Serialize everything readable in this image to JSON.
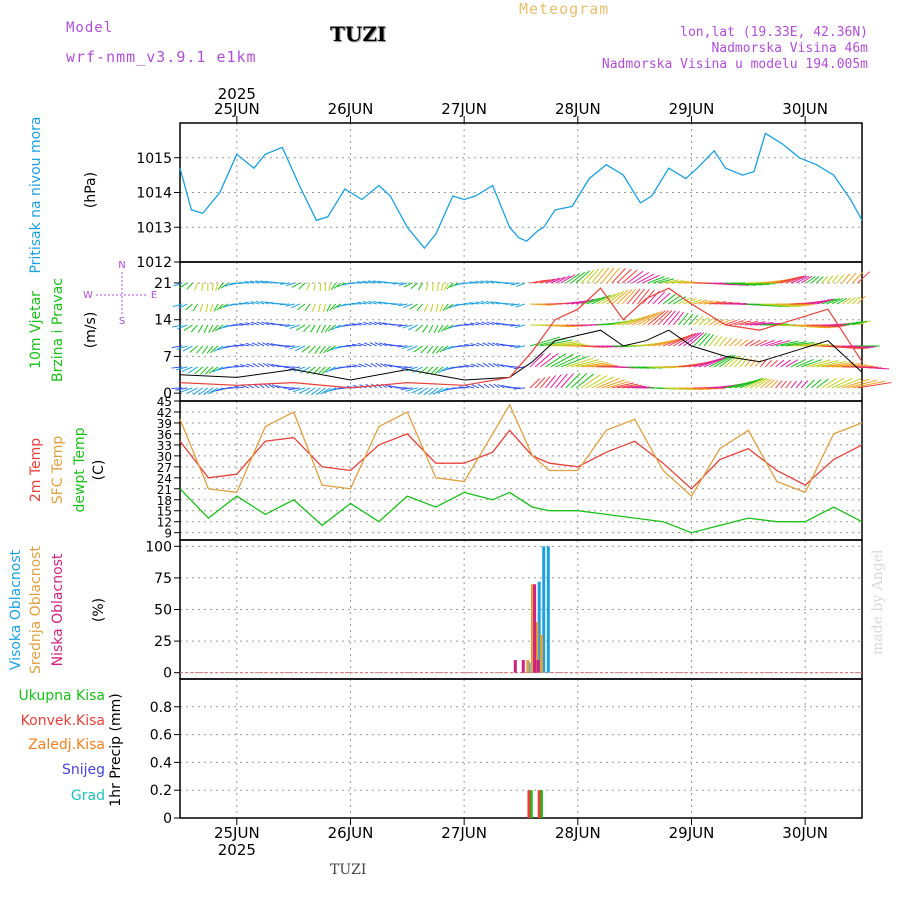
{
  "header": {
    "model_label": "Model",
    "model_name": "wrf-nmm_v3.9.1 e1km",
    "station_title": "TUZI",
    "meteogram_label": "Meteogram",
    "coords": "lon,lat (19.33E, 42.36N)",
    "elevation": "Nadmorska Visina 46m",
    "model_elevation": "Nadmorska Visina u modelu 194.005m"
  },
  "footer": {
    "station": "TUZI",
    "watermark": "made by Angel"
  },
  "time_axis": {
    "year": "2025",
    "days": [
      "25JUN",
      "26JUN",
      "27JUN",
      "28JUN",
      "29JUN",
      "30JUN"
    ],
    "range_days": [
      24.5,
      30.5
    ]
  },
  "panel_labels": {
    "pressure": [
      "Pritisak na nivou mora",
      "(hPa)"
    ],
    "wind": [
      "10m Vjetar",
      "Brzina i Pravac",
      "(m/s)"
    ],
    "wind_compass": [
      "N",
      "E",
      "S",
      "W"
    ],
    "temp": [
      "2m Temp",
      "SFC Temp",
      "dewpt Temp",
      "(C)"
    ],
    "cloud": [
      "Visoka Oblacnost",
      "Srednja Oblacnost",
      "Niska Oblacnost",
      "(%)"
    ],
    "precip": [
      "Ukupna Kisa",
      "Konvek.Kisa",
      "Zaledj.Kisa",
      "Snijeg",
      "Grad",
      "1hr Precip (mm)"
    ]
  },
  "colors": {
    "model_text": "#b04fd6",
    "meteogram_text": "#e8c070",
    "coords_text": "#b04fd6",
    "pressure_line": "#1aa0e0",
    "pressure_label": "#1aa0e0",
    "wind_label": "#18c018",
    "wind_speed_line": "#000000",
    "wind_gust_line": "#e8403a",
    "t2m": "#e8403a",
    "tsfc": "#e0a040",
    "tdew": "#18c018",
    "cloud_high": "#1aa0e0",
    "cloud_mid": "#e0a040",
    "cloud_low": "#d02080",
    "precip_total": "#18c018",
    "precip_conv": "#e8403a",
    "precip_frz": "#f08020",
    "precip_snow": "#4444dd",
    "precip_hail": "#20c0c0",
    "watermark": "#d8d8d8"
  },
  "chart_data": [
    {
      "type": "line",
      "panel": "pressure",
      "ylabel": "(hPa)",
      "ylim": [
        1012,
        1016
      ],
      "yticks": [
        1012,
        1013,
        1014,
        1015
      ],
      "series": [
        {
          "name": "Pritisak na nivou mora",
          "x": [
            24.5,
            24.6,
            24.7,
            24.85,
            25.0,
            25.15,
            25.25,
            25.4,
            25.55,
            25.7,
            25.8,
            25.95,
            26.1,
            26.25,
            26.35,
            26.5,
            26.65,
            26.75,
            26.9,
            27.0,
            27.1,
            27.25,
            27.4,
            27.48,
            27.55,
            27.65,
            27.7,
            27.8,
            27.95,
            28.1,
            28.25,
            28.4,
            28.55,
            28.65,
            28.8,
            28.95,
            29.05,
            29.2,
            29.3,
            29.45,
            29.55,
            29.65,
            29.8,
            29.95,
            30.1,
            30.25,
            30.4,
            30.5
          ],
          "y": [
            1014.7,
            1013.5,
            1013.4,
            1014.0,
            1015.1,
            1014.7,
            1015.1,
            1015.3,
            1014.2,
            1013.2,
            1013.3,
            1014.1,
            1013.8,
            1014.2,
            1013.9,
            1013.0,
            1012.4,
            1012.8,
            1013.9,
            1013.8,
            1013.9,
            1014.2,
            1013.0,
            1012.7,
            1012.6,
            1012.9,
            1013.0,
            1013.5,
            1013.6,
            1014.4,
            1014.8,
            1014.5,
            1013.7,
            1013.9,
            1014.7,
            1014.4,
            1014.7,
            1015.2,
            1014.7,
            1014.5,
            1014.6,
            1015.7,
            1015.4,
            1015.0,
            1014.8,
            1014.5,
            1013.8,
            1013.2
          ]
        }
      ]
    },
    {
      "type": "line",
      "panel": "wind",
      "ylabel": "(m/s)",
      "ylim": [
        -1.5,
        25
      ],
      "yticks": [
        0,
        7,
        14,
        21
      ],
      "series": [
        {
          "name": "speed",
          "x": [
            24.5,
            25.0,
            25.5,
            26.0,
            26.5,
            27.0,
            27.4,
            27.6,
            27.8,
            28.0,
            28.2,
            28.4,
            28.6,
            28.8,
            29.0,
            29.3,
            29.6,
            29.9,
            30.2,
            30.5
          ],
          "y": [
            3.5,
            3.0,
            4.5,
            2.5,
            4.5,
            2.5,
            3.0,
            6.0,
            10.0,
            11.0,
            12.0,
            9.0,
            10.0,
            12.0,
            9.0,
            7.0,
            6.0,
            8.0,
            10.0,
            4.0
          ]
        },
        {
          "name": "gust",
          "x": [
            24.5,
            25.0,
            25.5,
            26.0,
            26.5,
            27.0,
            27.4,
            27.6,
            27.8,
            28.0,
            28.2,
            28.4,
            28.6,
            28.8,
            29.0,
            29.3,
            29.6,
            29.9,
            30.2,
            30.5
          ],
          "y": [
            2.0,
            1.5,
            2.0,
            1.0,
            2.0,
            1.5,
            3.0,
            8.0,
            14.0,
            16.0,
            20.0,
            14.0,
            18.0,
            20.0,
            17.0,
            13.0,
            12.0,
            14.0,
            16.0,
            6.0
          ]
        }
      ]
    },
    {
      "type": "line",
      "panel": "temp",
      "ylabel": "(C)",
      "ylim": [
        7,
        45
      ],
      "yticks": [
        9,
        12,
        15,
        18,
        21,
        24,
        27,
        30,
        33,
        36,
        39,
        42,
        45
      ],
      "x": [
        24.5,
        24.75,
        25.0,
        25.25,
        25.5,
        25.75,
        26.0,
        26.25,
        26.5,
        26.75,
        27.0,
        27.25,
        27.4,
        27.6,
        27.75,
        28.0,
        28.25,
        28.5,
        28.75,
        29.0,
        29.25,
        29.5,
        29.75,
        30.0,
        30.25,
        30.5
      ],
      "series": [
        {
          "name": "2m Temp",
          "y": [
            34,
            24,
            25,
            34,
            35,
            27,
            26,
            33,
            36,
            28,
            28,
            31,
            37,
            30,
            28,
            27,
            31,
            34,
            28,
            21,
            29,
            32,
            26,
            22,
            29,
            33
          ]
        },
        {
          "name": "SFC Temp",
          "y": [
            40,
            21,
            20,
            38,
            42,
            22,
            21,
            38,
            42,
            24,
            23,
            36,
            44,
            30,
            26,
            26,
            37,
            40,
            26,
            19,
            32,
            37,
            23,
            20,
            36,
            39
          ]
        },
        {
          "name": "dewpt Temp",
          "y": [
            21,
            13,
            19,
            14,
            18,
            11,
            17,
            12,
            19,
            16,
            20,
            18,
            20,
            16,
            15,
            15,
            14,
            13,
            12,
            9,
            11,
            13,
            12,
            12,
            16,
            12
          ]
        }
      ]
    },
    {
      "type": "bar",
      "panel": "cloud",
      "ylabel": "(%)",
      "ylim": [
        -5,
        105
      ],
      "yticks": [
        0,
        25,
        50,
        75,
        100
      ],
      "series": [
        {
          "name": "Visoka Oblacnost",
          "x": [
            27.57,
            27.61,
            27.66,
            27.7,
            27.74
          ],
          "values": [
            8,
            68,
            72,
            100,
            100
          ]
        },
        {
          "name": "Srednja Oblacnost",
          "x": [
            27.56,
            27.6,
            27.64,
            27.68
          ],
          "values": [
            10,
            70,
            40,
            30
          ]
        },
        {
          "name": "Niska Oblacnost",
          "x": [
            27.45,
            27.52,
            27.62,
            27.65
          ],
          "values": [
            10,
            10,
            70,
            10
          ]
        }
      ]
    },
    {
      "type": "bar",
      "panel": "precip",
      "ylabel": "1hr Precip (mm)",
      "ylim": [
        0,
        1
      ],
      "yticks": [
        0,
        0.2,
        0.4,
        0.6,
        0.8
      ],
      "series": [
        {
          "name": "Ukupna Kisa",
          "x": [
            27.59,
            27.68
          ],
          "values": [
            0.2,
            0.2
          ]
        },
        {
          "name": "Konvek.Kisa",
          "x": [
            27.57,
            27.66
          ],
          "values": [
            0.2,
            0.2
          ]
        }
      ]
    }
  ]
}
